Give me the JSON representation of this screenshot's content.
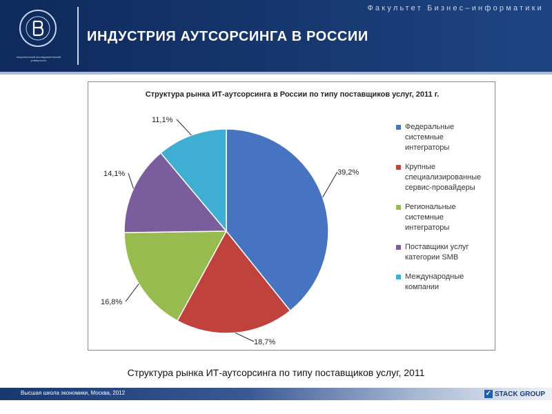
{
  "header": {
    "faculty": "Факультет Бизнес–информатики",
    "title": "ИНДУСТРИЯ АУТСОРСИНГА В РОССИИ",
    "logo_caption": "национальный исследовательский университет"
  },
  "chart_data": {
    "type": "pie",
    "title": "Структура рынка ИТ-аутсорсинга в России по типу поставщиков услуг, 2011 г.",
    "categories": [
      "Федеральные\nсистемные\nинтеграторы",
      "Крупные\nспециализированные\nсервис-провайдеры",
      "Региональные\nсистемные\nинтеграторы",
      "Поставщики услуг\nкатегории SMB",
      "Международные\nкомпании"
    ],
    "values": [
      39.2,
      18.7,
      16.8,
      14.1,
      11.1
    ],
    "value_labels": [
      "39,2%",
      "18,7%",
      "16,8%",
      "14,1%",
      "11,1%"
    ],
    "colors": [
      "#4674c1",
      "#c0423d",
      "#98bb4f",
      "#7a5d9d",
      "#3faed2"
    ],
    "legend_position": "right"
  },
  "caption": "Структура рынка ИТ-аутсорсинга по типу поставщиков услуг, 2011",
  "footer": {
    "text": "Высшая школа экономики, Москва, 2012",
    "brand": "STACK GROUP"
  }
}
